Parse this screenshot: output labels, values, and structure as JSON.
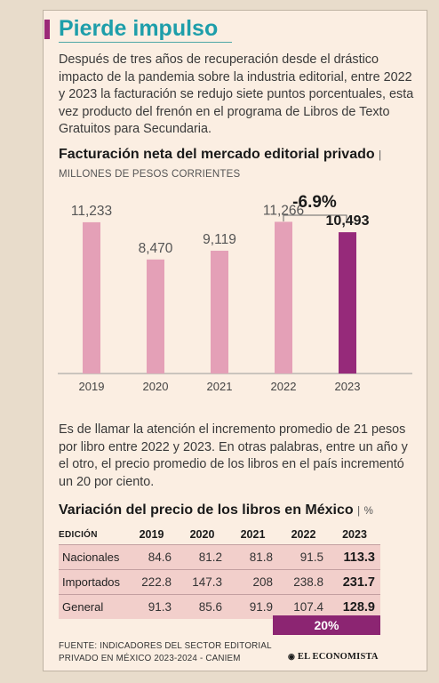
{
  "header": {
    "title": "Pierde impulso",
    "intro": "Después de tres años de recuperación desde el drástico impacto de la pandemia sobre la industria editorial, entre 2022 y 2023 la facturación se redujo siete puntos porcentuales, esta vez producto del frenón en el programa de Libros de Texto Gratuitos para Secundaria."
  },
  "chart_data": {
    "type": "bar",
    "title": "Facturación neta del mercado editorial privado",
    "subtitle": "MILLONES DE PESOS CORRIENTES",
    "categories": [
      "2019",
      "2020",
      "2021",
      "2022",
      "2023"
    ],
    "values": [
      11233,
      8470,
      9119,
      11266,
      10493
    ],
    "value_labels": [
      "11,233",
      "8,470",
      "9,119",
      "11,266",
      "10,493"
    ],
    "annotation": "-6.9%",
    "ylim": [
      0,
      14200
    ],
    "grid": false,
    "colors": {
      "bar": "#e4a0b7",
      "highlight": "#962a7a"
    }
  },
  "paragraph2": "Es de llamar la atención el incremento promedio de 21 pesos por libro entre 2022 y 2023. En otras palabras, entre un año y el otro, el precio promedio de los libros en el país incrementó un 20 por ciento.",
  "table": {
    "title": "Variación del precio de los libros en México",
    "unit": "%",
    "header_label": "EDICIÓN",
    "years": [
      "2019",
      "2020",
      "2021",
      "2022",
      "2023"
    ],
    "rows": [
      {
        "label": "Nacionales",
        "values": [
          "84.6",
          "81.2",
          "81.8",
          "91.5",
          "113.3"
        ]
      },
      {
        "label": "Importados",
        "values": [
          "222.8",
          "147.3",
          "208",
          "238.8",
          "231.7"
        ]
      },
      {
        "label": "General",
        "values": [
          "91.3",
          "85.6",
          "91.9",
          "107.4",
          "128.9"
        ]
      }
    ],
    "badge": "20%"
  },
  "footer": {
    "source": "FUENTE: INDICADORES DEL SECTOR EDITORIAL PRIVADO EN MÉXICO 2023-2024 - CANIEM",
    "brand": "EL ECONOMISTA"
  }
}
